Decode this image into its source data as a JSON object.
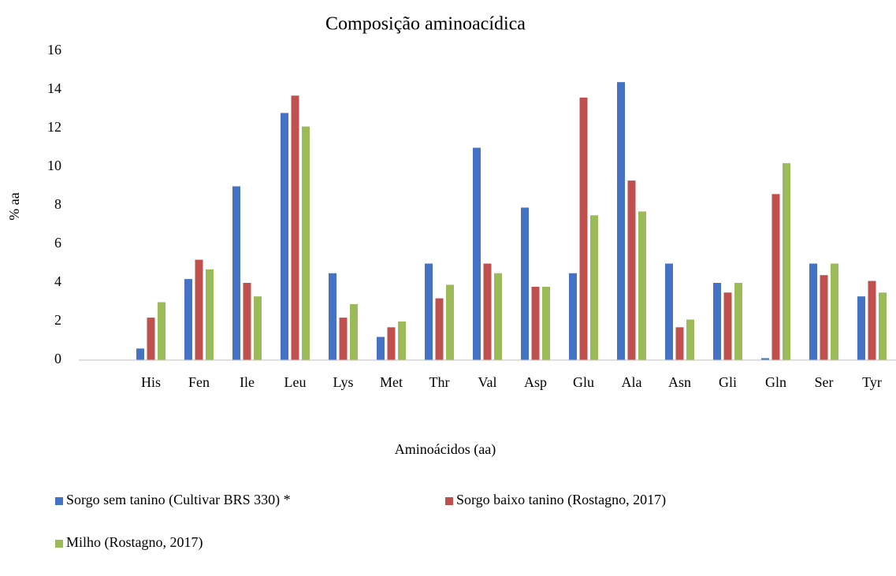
{
  "chart_data": {
    "type": "bar",
    "title": "Composição aminoacídica",
    "x_label": "Aminoácidos (aa)",
    "y_label": "% aa",
    "categories": [
      null,
      "His",
      "Fen",
      "Ile",
      "Leu",
      "Lys",
      "Met",
      "Thr",
      "Val",
      "Asp",
      "Glu",
      "Ala",
      "Asn",
      "Gli",
      "Gln",
      "Ser",
      "Tyr"
    ],
    "series": [
      {
        "name": "Sorgo sem tanino (Cultivar BRS 330) *",
        "color": "#4472c4",
        "values": [
          null,
          0.6,
          4.2,
          9.0,
          12.8,
          4.5,
          1.2,
          5.0,
          11.0,
          7.9,
          4.5,
          14.4,
          5.0,
          4.0,
          0.1,
          5.0,
          3.3
        ]
      },
      {
        "name": "Sorgo baixo tanino (Rostagno, 2017)",
        "color": "#c0504d",
        "values": [
          null,
          2.2,
          5.2,
          4.0,
          13.7,
          2.2,
          1.7,
          3.2,
          5.0,
          3.8,
          13.6,
          9.3,
          1.7,
          3.5,
          8.6,
          4.4,
          4.1
        ]
      },
      {
        "name": "Milho (Rostagno, 2017)",
        "color": "#9bbb59",
        "values": [
          null,
          3.0,
          4.7,
          3.3,
          12.1,
          2.9,
          2.0,
          3.9,
          4.5,
          3.8,
          7.5,
          7.7,
          2.1,
          4.0,
          10.2,
          5.0,
          3.5
        ]
      }
    ],
    "ylim": [
      0,
      16
    ],
    "yticks": [
      0,
      2,
      4,
      6,
      8,
      10,
      12,
      14,
      16
    ],
    "grid": false,
    "legend": "bottom"
  }
}
